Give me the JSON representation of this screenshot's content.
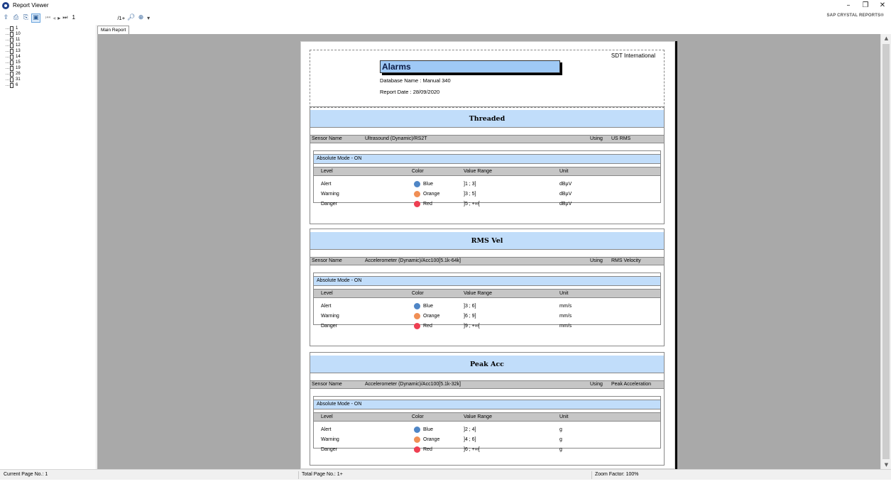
{
  "window": {
    "title": "Report Viewer",
    "minimize": "–",
    "restore": "❐",
    "close": "✕"
  },
  "toolbar": {
    "page_value": "1",
    "page_total": "/1+",
    "brand": "SAP CRYSTAL REPORTS®"
  },
  "tree": {
    "items": [
      "1",
      "10",
      "11",
      "12",
      "13",
      "14",
      "15",
      "19",
      "26",
      "31",
      "6"
    ]
  },
  "tabs": {
    "main": "Main Report"
  },
  "report": {
    "company": "SDT International",
    "title": "Alarms",
    "database_line": "Database Name : Manual 340",
    "date_line": "Report Date :  28/09/2020",
    "sensor_label": "Sensor Name",
    "using_label": "Using",
    "mode_label": "Absolute Mode - ON",
    "columns": {
      "level": "Level",
      "color": "Color",
      "range": "Value Range",
      "unit": "Unit"
    },
    "sections": [
      {
        "name": "Threaded",
        "sensor": "Ultrasound (Dynamic)/RS2T",
        "using": "US RMS",
        "levels": [
          {
            "level": "Alert",
            "color": "Blue",
            "dot": "#4f86c6",
            "range": "]1 ; 3]",
            "unit": "dBµV"
          },
          {
            "level": "Warning",
            "color": "Orange",
            "dot": "#f08f55",
            "range": "]3 ; 5]",
            "unit": "dBµV"
          },
          {
            "level": "Danger",
            "color": "Red",
            "dot": "#ee3f52",
            "range": "]5 ; +∞[",
            "unit": "dBµV"
          }
        ]
      },
      {
        "name": "RMS Vel",
        "sensor": "Accelerometer (Dynamic)/Acc100[5.1k-64k]",
        "using": "RMS Velocity",
        "levels": [
          {
            "level": "Alert",
            "color": "Blue",
            "dot": "#4f86c6",
            "range": "]3 ; 6]",
            "unit": "mm/s"
          },
          {
            "level": "Warning",
            "color": "Orange",
            "dot": "#f08f55",
            "range": "]6 ; 9]",
            "unit": "mm/s"
          },
          {
            "level": "Danger",
            "color": "Red",
            "dot": "#ee3f52",
            "range": "]9 ; +∞[",
            "unit": "mm/s"
          }
        ]
      },
      {
        "name": "Peak Acc",
        "sensor": "Accelerometer (Dynamic)/Acc100[5.1k-32k]",
        "using": "Peak Acceleration",
        "levels": [
          {
            "level": "Alert",
            "color": "Blue",
            "dot": "#4f86c6",
            "range": "]2 ; 4]",
            "unit": "g"
          },
          {
            "level": "Warning",
            "color": "Orange",
            "dot": "#f08f55",
            "range": "]4 ; 6]",
            "unit": "g"
          },
          {
            "level": "Danger",
            "color": "Red",
            "dot": "#ee3f52",
            "range": "]6 ; +∞[",
            "unit": "g"
          }
        ]
      }
    ]
  },
  "status": {
    "current_page": "Current Page No.: 1",
    "total_pages": "Total Page No.: 1+",
    "zoom": "Zoom Factor: 100%"
  }
}
